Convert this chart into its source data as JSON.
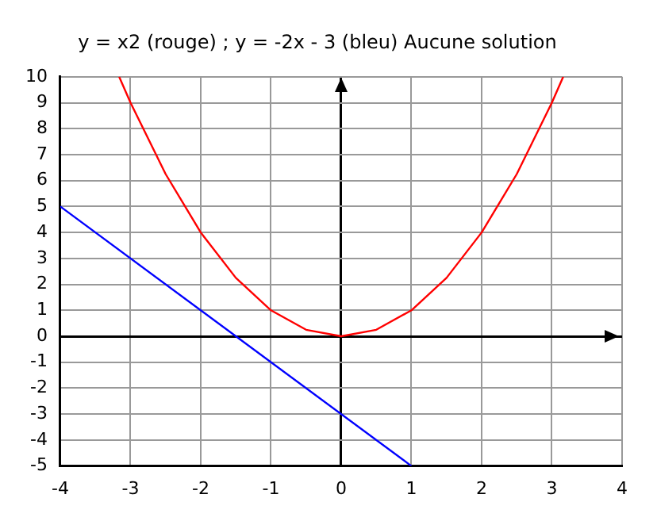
{
  "chart_data": {
    "type": "line",
    "title": "y = x2 (rouge) ; y = -2x - 3 (bleu) Aucune solution",
    "series": [
      {
        "color": "#ff0000",
        "x": [
          -3.162,
          -3,
          -2.5,
          -2,
          -1.5,
          -1,
          -0.5,
          0,
          0.5,
          1,
          1.5,
          2,
          2.5,
          3,
          3.162
        ],
        "values": [
          10,
          9,
          6.25,
          4,
          2.25,
          1,
          0.25,
          0,
          0.25,
          1,
          2.25,
          4,
          6.25,
          9,
          10
        ]
      },
      {
        "color": "#0000ff",
        "x": [
          -4,
          1
        ],
        "values": [
          5,
          -5
        ]
      }
    ],
    "xlim": [
      -4,
      4
    ],
    "xticks": [
      -4,
      -3,
      -2,
      -1,
      0,
      1,
      2,
      3,
      4
    ],
    "ylim": [
      -5,
      10
    ],
    "yticks": [
      -5,
      -4,
      -3,
      -2,
      -1,
      0,
      1,
      2,
      3,
      4,
      5,
      6,
      7,
      8,
      9,
      10
    ],
    "grid": true,
    "legend": false,
    "marker": "none",
    "line_style": "solid"
  }
}
